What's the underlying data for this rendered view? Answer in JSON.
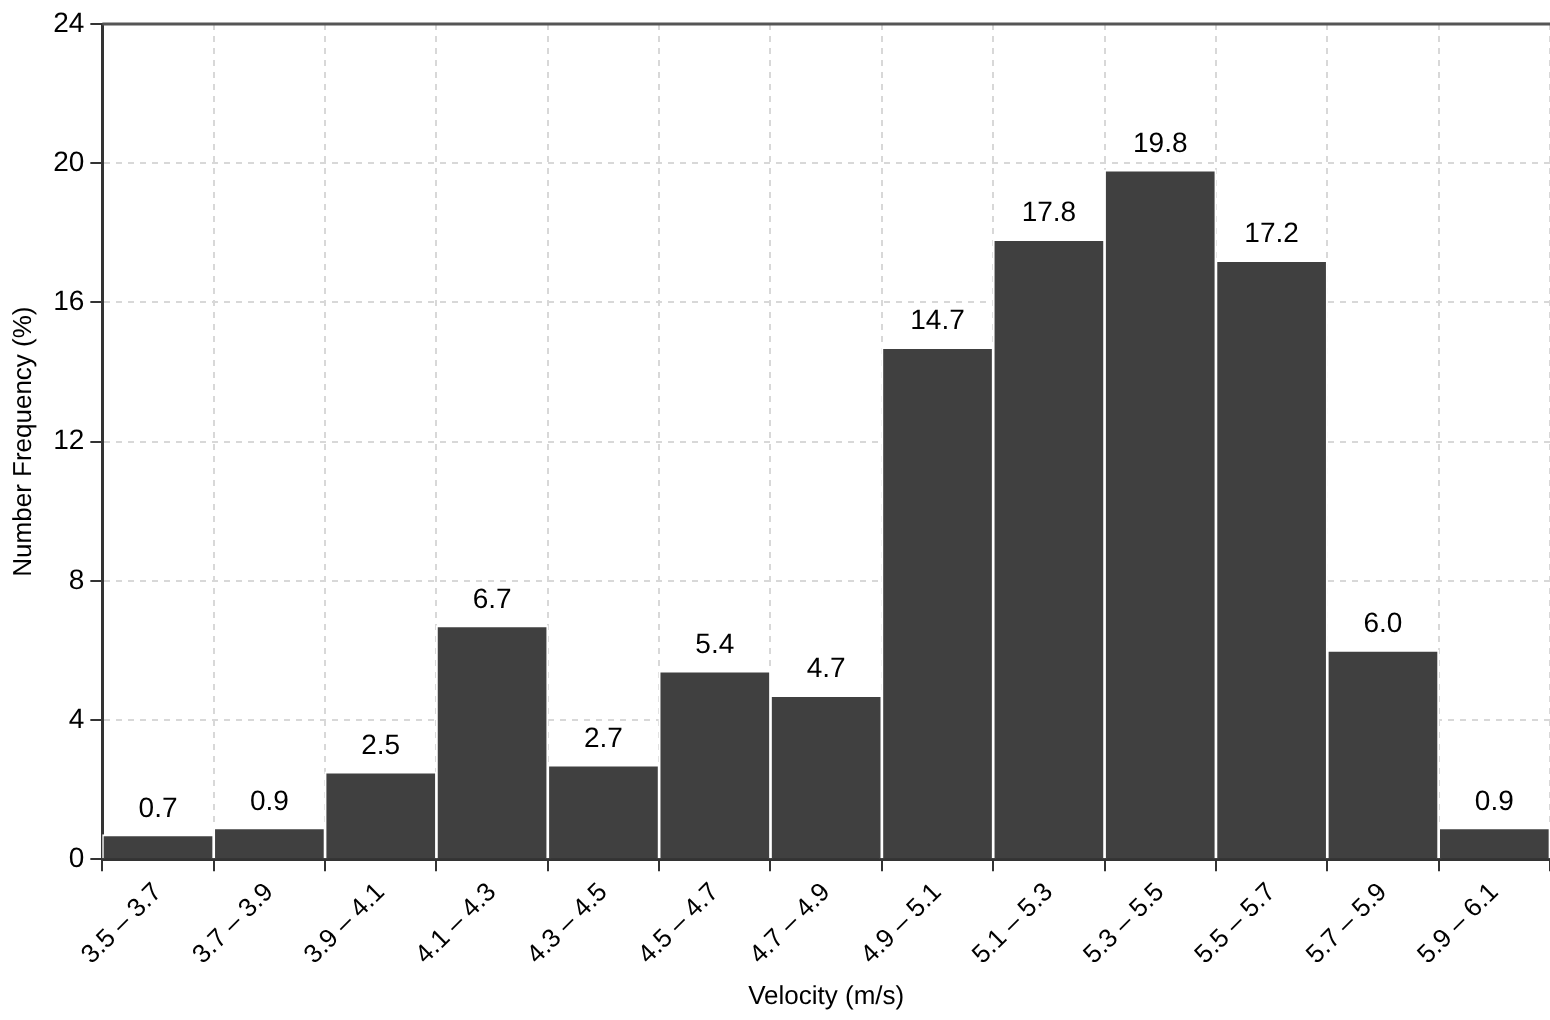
{
  "chart_data": {
    "type": "bar",
    "xlabel": "Velocity (m/s)",
    "ylabel": "Number Frequency (%)",
    "categories": [
      "3.5 – 3.7",
      "3.7 – 3.9",
      "3.9 – 4.1",
      "4.1 – 4.3",
      "4.3 – 4.5",
      "4.5 – 4.7",
      "4.7 – 4.9",
      "4.9 – 5.1",
      "5.1 – 5.3",
      "5.3 – 5.5",
      "5.5 – 5.7",
      "5.7 – 5.9",
      "5.9 – 6.1"
    ],
    "values": [
      0.7,
      0.9,
      2.5,
      6.7,
      2.7,
      5.4,
      4.7,
      14.7,
      17.8,
      19.8,
      17.2,
      6.0,
      0.9
    ],
    "value_labels": [
      "0.7",
      "0.9",
      "2.5",
      "6.7",
      "2.7",
      "5.4",
      "4.7",
      "14.7",
      "17.8",
      "19.8",
      "17.2",
      "6.0",
      "0.9"
    ],
    "color": "#404040",
    "ylim": [
      0,
      24
    ],
    "yticks": [
      0,
      4,
      8,
      12,
      16,
      20,
      24
    ],
    "grid": true
  }
}
